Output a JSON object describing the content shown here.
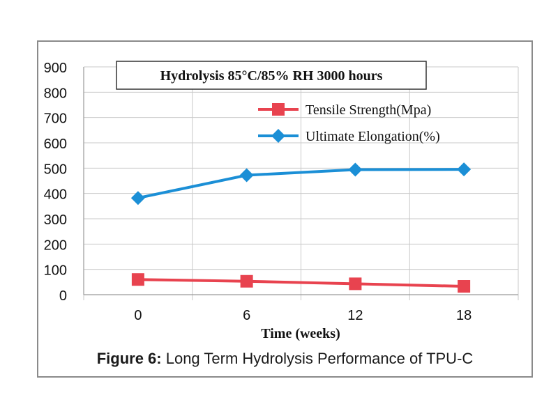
{
  "caption": {
    "label": "Figure 6:",
    "text": " Long Term Hydrolysis Performance of TPU-C"
  },
  "chart_data": {
    "type": "line",
    "title": "Hydrolysis 85°C/85% RH 3000 hours",
    "xlabel": "Time (weeks)",
    "ylabel": "",
    "categories": [
      "0",
      "6",
      "12",
      "18"
    ],
    "ylim": [
      0,
      900
    ],
    "yticks": [
      0,
      100,
      200,
      300,
      400,
      500,
      600,
      700,
      800,
      900
    ],
    "grid": true,
    "legend_position": "top-right",
    "series": [
      {
        "name": "Tensile Strength(Mpa)",
        "marker": "square",
        "color": "#e8434f",
        "values": [
          60,
          53,
          43,
          33
        ]
      },
      {
        "name": "Ultimate Elongation(%)",
        "marker": "diamond",
        "color": "#1b8fd6",
        "values": [
          382,
          472,
          494,
          495
        ]
      }
    ]
  }
}
